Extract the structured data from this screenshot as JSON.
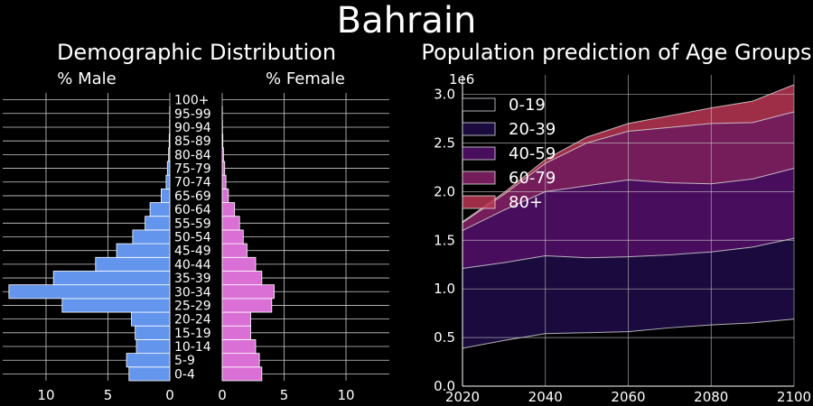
{
  "title": "Bahrain",
  "chart_data": [
    {
      "type": "bar",
      "orientation": "horizontal",
      "title": "Demographic Distribution",
      "male_label": "% Male",
      "female_label": "% Female",
      "categories": [
        "0-4",
        "5-9",
        "10-14",
        "15-19",
        "20-24",
        "25-29",
        "30-34",
        "35-39",
        "40-44",
        "45-49",
        "50-54",
        "55-59",
        "60-64",
        "65-69",
        "70-74",
        "75-79",
        "80-84",
        "85-89",
        "90-94",
        "95-99",
        "100+"
      ],
      "male": [
        3.3,
        3.5,
        2.7,
        2.8,
        3.1,
        8.7,
        13.0,
        9.4,
        6.0,
        4.3,
        3.0,
        2.0,
        1.6,
        0.7,
        0.3,
        0.2,
        0.1,
        0.05,
        0.02,
        0.01,
        0.0
      ],
      "female": [
        3.2,
        3.0,
        2.7,
        2.3,
        2.3,
        4.0,
        4.2,
        3.2,
        2.7,
        2.0,
        1.7,
        1.4,
        1.0,
        0.5,
        0.3,
        0.2,
        0.1,
        0.05,
        0.02,
        0.01,
        0.0
      ],
      "xlim": [
        0,
        13.5
      ],
      "xticks": [
        0,
        5,
        10
      ],
      "colors": {
        "male": "#6495ed",
        "female": "#da70d6",
        "bar_edge": "#ffffff"
      }
    },
    {
      "type": "area",
      "stacked": true,
      "title": "Population prediction of Age Groups",
      "offset_label": "1e6",
      "x": [
        2020,
        2030,
        2040,
        2050,
        2060,
        2070,
        2080,
        2090,
        2100
      ],
      "series": [
        {
          "name": "0-19",
          "color": "#000004",
          "values": [
            0.39,
            0.47,
            0.54,
            0.55,
            0.56,
            0.6,
            0.63,
            0.65,
            0.69
          ]
        },
        {
          "name": "20-39",
          "color": "#1f0c48",
          "values": [
            0.82,
            0.8,
            0.8,
            0.77,
            0.77,
            0.75,
            0.75,
            0.78,
            0.83
          ]
        },
        {
          "name": "40-59",
          "color": "#550f6d",
          "values": [
            0.39,
            0.54,
            0.66,
            0.74,
            0.79,
            0.74,
            0.7,
            0.7,
            0.72
          ]
        },
        {
          "name": "60-79",
          "color": "#88226a",
          "values": [
            0.08,
            0.16,
            0.29,
            0.44,
            0.5,
            0.57,
            0.62,
            0.58,
            0.58
          ]
        },
        {
          "name": "80+",
          "color": "#ba3655",
          "values": [
            0.01,
            0.02,
            0.04,
            0.06,
            0.08,
            0.12,
            0.16,
            0.22,
            0.28
          ]
        }
      ],
      "xlim": [
        2020,
        2100
      ],
      "ylim": [
        0,
        3.2
      ],
      "xticks": [
        2020,
        2040,
        2060,
        2080,
        2100
      ],
      "yticks": [
        0.0,
        0.5,
        1.0,
        1.5,
        2.0,
        2.5,
        3.0
      ],
      "legend": "top-left",
      "grid": true
    }
  ]
}
